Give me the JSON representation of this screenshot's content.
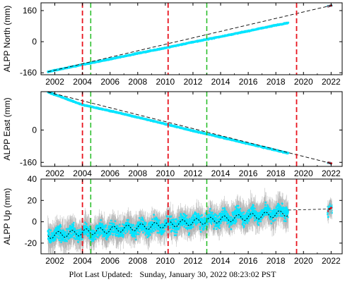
{
  "footer": {
    "label": "Plot Last Updated:",
    "timestamp": "Sunday, January 30, 2022 08:23:02 PST"
  },
  "colors": {
    "data_points": "#00e5ff",
    "error_bars": "#b4b4b4",
    "model_line": "#000000",
    "event_red": "#e8141e",
    "event_green": "#22bb22",
    "recent_points": "#e8141e"
  },
  "chart_data": [
    {
      "type": "scatter",
      "ylabel": "ALPP North (mm)",
      "xlim": [
        2001.0,
        2022.8
      ],
      "ylim": [
        -170,
        200
      ],
      "xticks": [
        2002,
        2004,
        2006,
        2008,
        2010,
        2012,
        2014,
        2016,
        2018,
        2020,
        2022
      ],
      "yticks": [
        -160,
        0,
        160
      ],
      "grid": false,
      "legend": "none",
      "series": [
        {
          "x": [
            2001.5,
            2003.0,
            2004.0,
            2006.0,
            2008.0,
            2010.0,
            2012.0,
            2014.0,
            2016.0,
            2018.0,
            2018.9
          ],
          "y": [
            -155,
            -133,
            -118,
            -90,
            -60,
            -32,
            -2,
            26,
            55,
            85,
            97
          ]
        },
        {
          "x": [
            2021.8,
            2021.9,
            2022.0
          ],
          "y": [
            182,
            184,
            186
          ]
        }
      ],
      "trend": {
        "x": [
          2001.5,
          2022.1
        ],
        "y": [
          -155,
          188
        ]
      },
      "events_red": [
        2004.0,
        2010.2,
        2019.5
      ],
      "events_green": [
        2004.6,
        2013.0
      ]
    },
    {
      "type": "scatter",
      "ylabel": "ALPP East (mm)",
      "xlim": [
        2001.0,
        2022.8
      ],
      "ylim": [
        -180,
        190
      ],
      "xticks": [
        2002,
        2004,
        2006,
        2008,
        2010,
        2012,
        2014,
        2016,
        2018,
        2020,
        2022
      ],
      "yticks": [
        0,
        -160
      ],
      "grid": false,
      "legend": "none",
      "series": [
        {
          "x": [
            2001.5,
            2004.0,
            2006.0,
            2008.0,
            2010.0,
            2012.0,
            2014.0,
            2016.0,
            2018.0,
            2018.9
          ],
          "y": [
            188,
            125,
            95,
            63,
            30,
            -4,
            -35,
            -68,
            -100,
            -115
          ]
        },
        {
          "x": [
            2021.8,
            2021.9,
            2022.0
          ],
          "y": [
            -162,
            -163,
            -165
          ]
        }
      ],
      "trend": {
        "x": [
          2001.5,
          2022.1
        ],
        "y": [
          188,
          -167
        ]
      },
      "events_red": [
        2004.0,
        2010.2,
        2019.5
      ],
      "events_green": [
        2004.6,
        2013.0
      ]
    },
    {
      "type": "scatter",
      "ylabel": "ALPP Up (mm)",
      "xlim": [
        2001.0,
        2022.8
      ],
      "ylim": [
        -30,
        40
      ],
      "xticks": [
        2002,
        2004,
        2006,
        2008,
        2010,
        2012,
        2014,
        2016,
        2018,
        2020,
        2022
      ],
      "yticks": [
        40,
        20,
        0,
        -20
      ],
      "grid": false,
      "legend": "none",
      "series": [
        {
          "x": [
            2001.5,
            2003.0,
            2004.0,
            2006.0,
            2008.0,
            2010.0,
            2012.0,
            2014.0,
            2016.0,
            2018.0,
            2018.9
          ],
          "y": [
            -13,
            -11,
            -10,
            -8,
            -6,
            -3,
            0,
            3,
            6,
            9,
            11
          ],
          "err": 10
        },
        {
          "x": [
            2021.8,
            2021.9,
            2022.0
          ],
          "y": [
            10,
            12,
            13
          ]
        }
      ],
      "trend": {
        "x": [
          2001.5,
          2022.1
        ],
        "y": [
          -13,
          12
        ]
      },
      "events_red": [
        2004.0,
        2010.2,
        2019.5
      ],
      "events_green": [
        2004.6,
        2013.0
      ]
    }
  ]
}
